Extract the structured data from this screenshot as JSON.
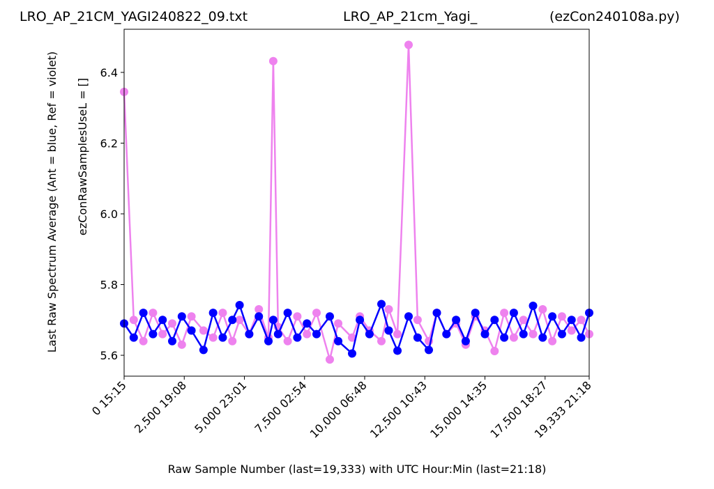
{
  "chart_data": {
    "type": "line",
    "titles": [
      "LRO_AP_21CM_YAGI240822_09.txt",
      "LRO_AP_21cm_Yagi_",
      "(ezCon240108a.py)"
    ],
    "y_labels": [
      "Last Raw Spectrum Average   (Ant = blue, Ref = violet)",
      "ezConRawSamplesUseL = []"
    ],
    "x_label": "Raw Sample Number (last=19,333) with UTC Hour:Min (last=21:18)",
    "x": [
      0,
      400,
      800,
      1200,
      1600,
      2000,
      2400,
      2800,
      3300,
      3700,
      4100,
      4500,
      4800,
      5200,
      5600,
      6000,
      6200,
      6400,
      6800,
      7200,
      7600,
      8000,
      8550,
      8900,
      9478,
      9800,
      10200,
      10696,
      11000,
      11363,
      11826,
      12200,
      12667,
      13000,
      13400,
      13800,
      14200,
      14600,
      15000,
      15400,
      15800,
      16200,
      16600,
      17000,
      17400,
      17800,
      18200,
      18600,
      19000,
      19333
    ],
    "series": [
      {
        "color": "#ee82ee",
        "values": [
          6.345,
          5.7,
          5.64,
          5.72,
          5.66,
          5.69,
          5.63,
          5.71,
          5.67,
          5.65,
          5.72,
          5.64,
          5.7,
          5.66,
          5.73,
          5.65,
          6.432,
          5.68,
          5.64,
          5.71,
          5.66,
          5.72,
          5.588,
          5.69,
          5.65,
          5.71,
          5.67,
          5.64,
          5.73,
          5.66,
          6.478,
          5.7,
          5.64,
          5.72,
          5.66,
          5.69,
          5.63,
          5.71,
          5.67,
          5.612,
          5.72,
          5.65,
          5.7,
          5.66,
          5.73,
          5.64,
          5.71,
          5.67,
          5.7,
          5.66
        ]
      },
      {
        "color": "#0000ff",
        "values": [
          5.69,
          5.65,
          5.72,
          5.66,
          5.7,
          5.64,
          5.71,
          5.67,
          5.615,
          5.72,
          5.65,
          5.7,
          5.742,
          5.66,
          5.71,
          5.64,
          5.7,
          5.66,
          5.72,
          5.65,
          5.69,
          5.66,
          5.71,
          5.64,
          5.605,
          5.7,
          5.66,
          5.745,
          5.67,
          5.613,
          5.71,
          5.65,
          5.615,
          5.72,
          5.66,
          5.7,
          5.64,
          5.72,
          5.66,
          5.7,
          5.65,
          5.72,
          5.66,
          5.74,
          5.65,
          5.71,
          5.66,
          5.7,
          5.65,
          5.72
        ]
      }
    ],
    "xlim": [
      0,
      19333
    ],
    "xticks": [
      {
        "value": 0,
        "label": "0  15:15"
      },
      {
        "value": 2500,
        "label": "2,500  19:08"
      },
      {
        "value": 5000,
        "label": "5,000  23:01"
      },
      {
        "value": 7500,
        "label": "7,500  02:54"
      },
      {
        "value": 10000,
        "label": "10,000  06:48"
      },
      {
        "value": 12500,
        "label": "12,500  10:43"
      },
      {
        "value": 15000,
        "label": "15,000  14:35"
      },
      {
        "value": 17500,
        "label": "17,500  18:27"
      },
      {
        "value": 19333,
        "label": "19,333  21:18"
      }
    ],
    "ylim": [
      5.541,
      6.522
    ],
    "yticks": [
      5.6,
      5.8,
      {
        "value": 6,
        "label": "6.0"
      },
      6.2,
      6.4
    ]
  }
}
